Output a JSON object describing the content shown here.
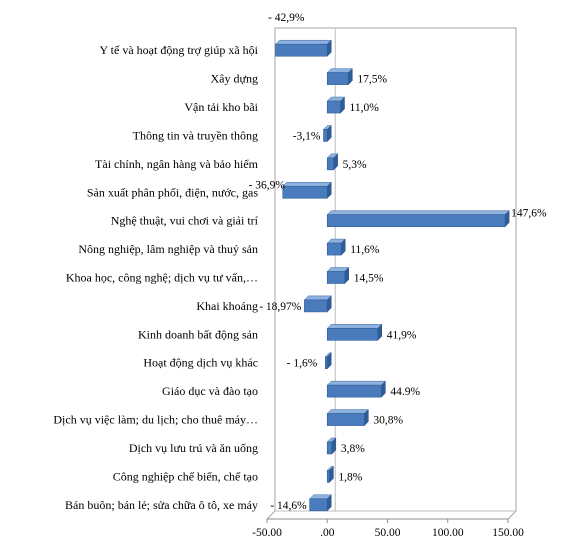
{
  "chart_data": {
    "type": "bar",
    "orientation": "horizontal",
    "style": "3d",
    "bar_color": "#4a7bbd",
    "grid": false,
    "legend": "none",
    "xlim": [
      -50,
      150
    ],
    "x_ticks": [
      -50,
      0,
      50,
      100,
      150
    ],
    "x_tick_labels": [
      "-50.00",
      ".00",
      "50.00",
      "100.00",
      "150.00"
    ],
    "categories": [
      "Y tế và hoạt động trợ giúp xã hội",
      "Xây dựng",
      "Vận tải kho bãi",
      "Thông tin và truyền thông",
      "Tài chính, ngân hàng và bảo hiểm",
      "Sản xuất phân phối, điện, nước, gas",
      "Nghệ thuật, vui chơi và giải trí",
      "Nông nghiệp, lâm nghiệp và thuỷ sản",
      "Khoa học, công nghệ; dịch vụ tư vấn,…",
      "Khai khoáng",
      "Kinh doanh bất động sản",
      "Hoạt động dịch vụ khác",
      "Giáo dục và đào tạo",
      "Dịch vụ việc làm; du lịch; cho thuê máy…",
      "Dịch vụ lưu trú và ăn uống",
      "Công nghiệp chế biến, chế tạo",
      "Bán buôn; bán lẻ; sửa chữa ô tô, xe máy"
    ],
    "values": [
      -42.9,
      17.5,
      11.0,
      -3.1,
      5.3,
      -36.9,
      147.6,
      11.6,
      14.5,
      -18.97,
      41.9,
      -1.6,
      44.9,
      30.8,
      3.8,
      1.8,
      -14.6
    ],
    "data_labels": [
      "- 42,9%",
      "17,5%",
      "11,0%",
      "-3,1%",
      "5,3%",
      "- 36,9%",
      "147,6%",
      "11,6%",
      "14,5%",
      "- 18,97%",
      "41,9%",
      "- 1,6%",
      "44.9%",
      "30,8%",
      "3,8%",
      "1,8%",
      "- 14,6%"
    ]
  }
}
